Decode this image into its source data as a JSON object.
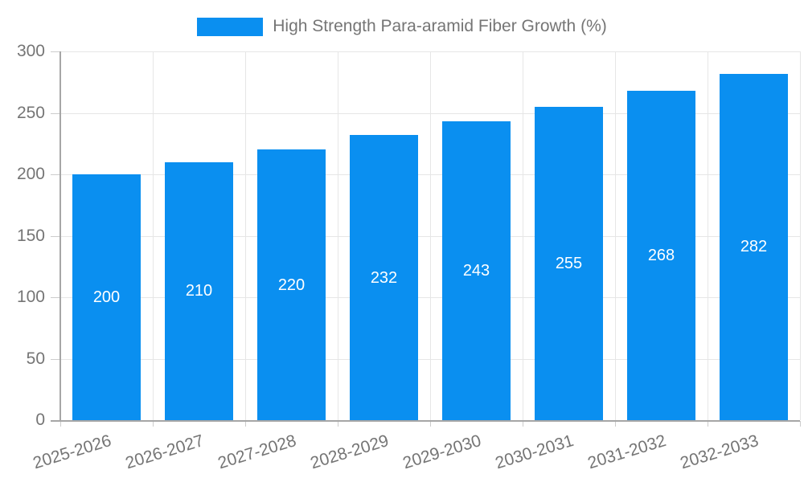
{
  "legend": {
    "label": "High Strength Para-aramid Fiber Growth (%)"
  },
  "chart_data": {
    "type": "bar",
    "title": "High Strength Para-aramid Fiber Growth (%)",
    "categories": [
      "2025-2026",
      "2026-2027",
      "2027-2028",
      "2028-2029",
      "2029-2030",
      "2030-2031",
      "2031-2032",
      "2032-2033"
    ],
    "values": [
      200,
      210,
      220,
      232,
      243,
      255,
      268,
      282
    ],
    "xlabel": "",
    "ylabel": "",
    "ylim": [
      0,
      300
    ],
    "yticks": [
      0,
      50,
      100,
      150,
      200,
      250,
      300
    ],
    "grid": true,
    "legend_position": "top-center",
    "value_labels_inside_bars": true,
    "colors": {
      "bar": "#0a8ff0",
      "value_label": "#ffffff",
      "axis_text": "#757575",
      "gridline": "#e6e6e6",
      "axis_line": "#a6a6a6",
      "tick": "#cccccc",
      "background": "#ffffff"
    }
  }
}
